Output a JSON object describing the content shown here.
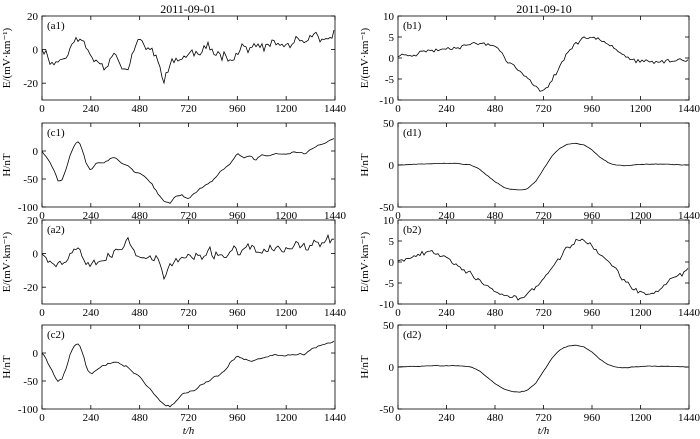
{
  "column_titles": [
    "2011-09-01",
    "2011-09-10"
  ],
  "chart_data": [
    {
      "type": "line",
      "id": "a1",
      "panel_label": "(a1)",
      "ylabel": "E/(mV·km⁻¹)",
      "xlabel": "",
      "xlim": [
        0,
        1440
      ],
      "ylim": [
        -30,
        20
      ],
      "xticks": [
        0,
        240,
        480,
        720,
        960,
        1200,
        1440
      ],
      "yticks": [
        -20,
        0,
        20
      ],
      "yticklabels": [
        "-20",
        "0",
        "20"
      ],
      "noise": 3.5,
      "seed": 11,
      "x": [
        0,
        30,
        60,
        90,
        120,
        150,
        180,
        210,
        240,
        270,
        300,
        330,
        360,
        390,
        420,
        450,
        480,
        510,
        540,
        570,
        600,
        630,
        660,
        690,
        720,
        750,
        780,
        810,
        840,
        870,
        900,
        930,
        960,
        990,
        1020,
        1050,
        1080,
        1110,
        1140,
        1170,
        1200,
        1230,
        1260,
        1290,
        1320,
        1350,
        1380,
        1410,
        1440
      ],
      "y": [
        2,
        -4,
        -8,
        -6,
        -3,
        2,
        8,
        2,
        -4,
        -6,
        -9,
        -6,
        1,
        -10,
        -14,
        0,
        4,
        2,
        -1,
        -8,
        -16,
        -10,
        -6,
        -5,
        -3,
        -2,
        -3,
        0,
        -1,
        -2,
        -2,
        -4,
        -2,
        2,
        1,
        1,
        1,
        2,
        3,
        3,
        2,
        4,
        5,
        3,
        6,
        6,
        4,
        7,
        8
      ]
    },
    {
      "type": "line",
      "id": "b1",
      "panel_label": "(b1)",
      "ylabel": "E/(mV·km⁻¹)",
      "xlabel": "",
      "xlim": [
        0,
        1440
      ],
      "ylim": [
        -10,
        10
      ],
      "xticks": [
        0,
        240,
        480,
        720,
        960,
        1200,
        1440
      ],
      "yticks": [
        -10,
        -5,
        0,
        5,
        10
      ],
      "yticklabels": [
        "-10",
        "-5",
        "0",
        "5",
        "10"
      ],
      "noise": 0.55,
      "seed": 23,
      "x": [
        0,
        40,
        80,
        120,
        160,
        200,
        240,
        280,
        320,
        360,
        400,
        440,
        480,
        500,
        530,
        560,
        600,
        640,
        680,
        700,
        720,
        760,
        800,
        840,
        880,
        920,
        960,
        1000,
        1040,
        1080,
        1120,
        1160,
        1200,
        1240,
        1280,
        1320,
        1360,
        1400,
        1440
      ],
      "y": [
        0.5,
        0.8,
        1,
        1.5,
        1.8,
        2,
        2.3,
        2.7,
        3,
        3.3,
        3.5,
        3.3,
        2.8,
        2.6,
        0,
        -1.5,
        -3,
        -5,
        -7,
        -7.8,
        -7.5,
        -5.5,
        -2,
        1.5,
        3.5,
        4.5,
        5,
        4.8,
        3.8,
        2.2,
        0.8,
        -0.5,
        -1,
        -1,
        -1,
        -0.8,
        -0.6,
        -0.4,
        -0.2
      ]
    },
    {
      "type": "line",
      "id": "c1",
      "panel_label": "(c1)",
      "ylabel": "H/nT",
      "xlabel": "",
      "xlim": [
        0,
        1440
      ],
      "ylim": [
        -100,
        50
      ],
      "xticks": [
        0,
        240,
        480,
        720,
        960,
        1200,
        1440
      ],
      "yticks": [
        -100,
        -50,
        0
      ],
      "yticklabels": [
        "-100",
        "-50",
        "0"
      ],
      "noise": 1.8,
      "seed": 37,
      "x": [
        0,
        20,
        40,
        60,
        80,
        100,
        120,
        140,
        160,
        180,
        200,
        220,
        240,
        270,
        300,
        330,
        360,
        390,
        420,
        450,
        480,
        510,
        540,
        570,
        600,
        630,
        660,
        690,
        720,
        750,
        780,
        810,
        840,
        870,
        900,
        930,
        960,
        990,
        1020,
        1050,
        1080,
        1110,
        1140,
        1170,
        1200,
        1230,
        1260,
        1290,
        1320,
        1350,
        1380,
        1410,
        1440
      ],
      "y": [
        0,
        -8,
        -20,
        -35,
        -55,
        -50,
        -30,
        -5,
        12,
        18,
        2,
        -25,
        -35,
        -20,
        -20,
        -15,
        -12,
        -20,
        -25,
        -35,
        -40,
        -48,
        -60,
        -78,
        -90,
        -92,
        -80,
        -78,
        -86,
        -75,
        -66,
        -60,
        -52,
        -40,
        -30,
        -20,
        -5,
        -12,
        -10,
        -16,
        -8,
        -8,
        -5,
        -5,
        -6,
        -3,
        -2,
        -5,
        3,
        8,
        12,
        18,
        22
      ]
    },
    {
      "type": "line",
      "id": "d1",
      "panel_label": "(d1)",
      "ylabel": "H/nT",
      "xlabel": "",
      "xlim": [
        0,
        1440
      ],
      "ylim": [
        -50,
        50
      ],
      "xticks": [
        0,
        240,
        480,
        720,
        960,
        1200,
        1440
      ],
      "yticks": [
        -50,
        0,
        50
      ],
      "yticklabels": [
        "-50",
        "0",
        "50"
      ],
      "noise": 0.45,
      "seed": 41,
      "x": [
        0,
        60,
        120,
        180,
        240,
        300,
        360,
        400,
        440,
        480,
        520,
        560,
        600,
        640,
        680,
        720,
        760,
        800,
        840,
        880,
        920,
        960,
        1000,
        1040,
        1080,
        1120,
        1160,
        1200,
        1260,
        1320,
        1380,
        1440
      ],
      "y": [
        0,
        0.5,
        1,
        1.5,
        2,
        1.5,
        0,
        -4,
        -12,
        -20,
        -26,
        -29,
        -30,
        -28,
        -20,
        -5,
        10,
        20,
        25,
        26,
        24,
        18,
        9,
        3,
        0,
        -1,
        0,
        1,
        1,
        1,
        0.5,
        0
      ]
    },
    {
      "type": "line",
      "id": "a2",
      "panel_label": "(a2)",
      "ylabel": "E/(mV·km⁻¹)",
      "xlabel": "",
      "xlim": [
        0,
        1440
      ],
      "ylim": [
        -30,
        20
      ],
      "xticks": [
        0,
        240,
        480,
        720,
        960,
        1200,
        1440
      ],
      "yticks": [
        -20,
        0,
        20
      ],
      "yticklabels": [
        "-20",
        "0",
        "20"
      ],
      "noise": 3.2,
      "seed": 53,
      "x": [
        0,
        30,
        60,
        90,
        120,
        150,
        180,
        210,
        240,
        270,
        300,
        330,
        360,
        390,
        420,
        450,
        480,
        510,
        540,
        570,
        600,
        630,
        660,
        690,
        720,
        750,
        780,
        810,
        840,
        870,
        900,
        930,
        960,
        990,
        1020,
        1050,
        1080,
        1110,
        1140,
        1170,
        1200,
        1230,
        1260,
        1290,
        1320,
        1350,
        1380,
        1410,
        1440
      ],
      "y": [
        2,
        -3,
        -6,
        -4,
        -5,
        2,
        6,
        -2,
        -4,
        -4,
        -3,
        -2,
        0,
        2,
        10,
        2,
        0,
        -2,
        -3,
        -4,
        -14,
        -8,
        -4,
        -3,
        -2,
        -3,
        -2,
        -1,
        0,
        -1,
        0,
        1,
        1,
        0,
        3,
        2,
        1,
        2,
        3,
        2,
        3,
        3,
        4,
        4,
        5,
        6,
        6,
        7,
        8
      ]
    },
    {
      "type": "line",
      "id": "b2",
      "panel_label": "(b2)",
      "ylabel": "E/(mV·km⁻¹)",
      "xlabel": "",
      "xlim": [
        0,
        1440
      ],
      "ylim": [
        -10,
        10
      ],
      "xticks": [
        0,
        240,
        480,
        720,
        960,
        1200,
        1440
      ],
      "yticks": [
        -10,
        -5,
        0,
        5,
        10
      ],
      "yticklabels": [
        "-10",
        "-5",
        "0",
        "5",
        "10"
      ],
      "noise": 0.65,
      "seed": 67,
      "x": [
        0,
        40,
        80,
        120,
        160,
        200,
        240,
        280,
        320,
        360,
        400,
        440,
        480,
        520,
        560,
        600,
        640,
        680,
        720,
        760,
        800,
        840,
        880,
        920,
        960,
        1000,
        1040,
        1080,
        1120,
        1160,
        1200,
        1240,
        1280,
        1320,
        1360,
        1400,
        1440
      ],
      "y": [
        0.5,
        1,
        1.5,
        2,
        2.5,
        2.2,
        1.5,
        0,
        -1.5,
        -3,
        -4.5,
        -6,
        -7,
        -8,
        -8.5,
        -8.8,
        -7.5,
        -6,
        -4,
        -1.5,
        1,
        3.5,
        5,
        5.2,
        4,
        2,
        0,
        -2,
        -4.5,
        -6.5,
        -7.5,
        -7.8,
        -7,
        -5.5,
        -4,
        -3,
        -1.5
      ]
    },
    {
      "type": "line",
      "id": "c2",
      "panel_label": "(c2)",
      "ylabel": "H/nT",
      "xlabel": "t/h",
      "xlim": [
        0,
        1440
      ],
      "ylim": [
        -100,
        50
      ],
      "xticks": [
        0,
        240,
        480,
        720,
        960,
        1200,
        1440
      ],
      "yticks": [
        -100,
        -50,
        0
      ],
      "yticklabels": [
        "-100",
        "-50",
        "0"
      ],
      "noise": 1.8,
      "seed": 79,
      "x": [
        0,
        20,
        40,
        60,
        80,
        100,
        120,
        140,
        160,
        180,
        200,
        220,
        240,
        270,
        300,
        330,
        360,
        390,
        420,
        450,
        480,
        510,
        540,
        570,
        600,
        630,
        660,
        690,
        720,
        750,
        780,
        810,
        840,
        870,
        900,
        930,
        960,
        990,
        1020,
        1050,
        1080,
        1110,
        1140,
        1170,
        1200,
        1230,
        1260,
        1290,
        1320,
        1350,
        1380,
        1410,
        1440
      ],
      "y": [
        0,
        -10,
        -25,
        -40,
        -52,
        -45,
        -25,
        0,
        14,
        18,
        0,
        -28,
        -38,
        -30,
        -22,
        -18,
        -15,
        -20,
        -25,
        -35,
        -42,
        -55,
        -68,
        -82,
        -92,
        -95,
        -85,
        -72,
        -70,
        -66,
        -58,
        -52,
        -45,
        -40,
        -30,
        -15,
        -5,
        -10,
        -14,
        -12,
        -8,
        -8,
        -4,
        -5,
        -5,
        -3,
        -2,
        -4,
        5,
        10,
        15,
        18,
        22
      ]
    },
    {
      "type": "line",
      "id": "d2",
      "panel_label": "(d2)",
      "ylabel": "H/nT",
      "xlabel": "t/h",
      "xlim": [
        0,
        1440
      ],
      "ylim": [
        -50,
        50
      ],
      "xticks": [
        0,
        240,
        480,
        720,
        960,
        1200,
        1440
      ],
      "yticks": [
        -50,
        0,
        50
      ],
      "yticklabels": [
        "-50",
        "0",
        "50"
      ],
      "noise": 0.45,
      "seed": 83,
      "x": [
        0,
        60,
        120,
        180,
        240,
        300,
        360,
        400,
        440,
        480,
        520,
        560,
        600,
        640,
        680,
        720,
        760,
        800,
        840,
        880,
        920,
        960,
        1000,
        1040,
        1080,
        1120,
        1160,
        1200,
        1260,
        1320,
        1380,
        1440
      ],
      "y": [
        0,
        0.5,
        1,
        1.5,
        2,
        1.5,
        0,
        -4,
        -12,
        -20,
        -26,
        -29,
        -30,
        -28,
        -20,
        -5,
        10,
        20,
        25,
        26,
        24,
        18,
        9,
        3,
        0,
        -1,
        0,
        1,
        1,
        1,
        0.5,
        0
      ]
    }
  ]
}
